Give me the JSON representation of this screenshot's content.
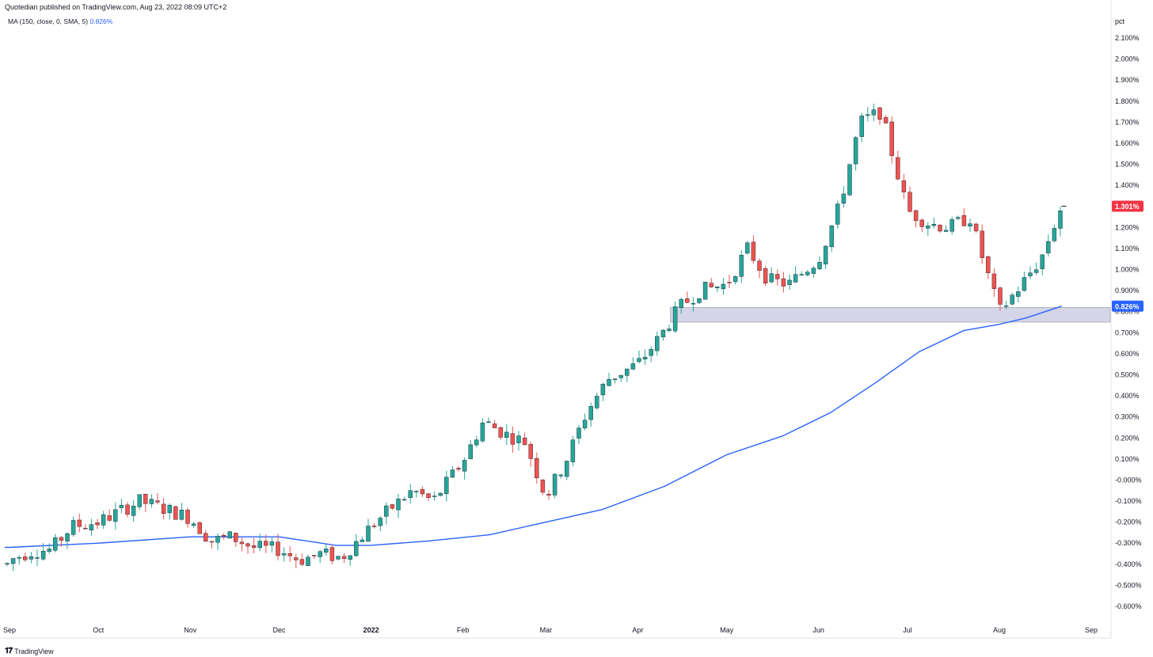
{
  "header": {
    "credit": "Quotedian published on TradingView.com, Aug 23, 2022 08:09 UTC+2",
    "indicator_label": "MA (150, close, 0, SMA, 5)",
    "indicator_value": "0.826%"
  },
  "footer": {
    "brand_icon": "tradingview-logo-icon",
    "brand": "TradingView"
  },
  "colors": {
    "up": "#26a69a",
    "down": "#ef5350",
    "ma_line": "#2962ff",
    "zone_fill": "#c9cbe0",
    "price_badge": "#f23645",
    "ma_badge": "#2962ff",
    "axis_text": "#131722"
  },
  "chart_data": {
    "type": "candlestick",
    "y_unit": "pct",
    "ylim": [
      -0.65,
      2.15
    ],
    "y_ticks": [
      "2.100%",
      "2.000%",
      "1.900%",
      "1.800%",
      "1.700%",
      "1.600%",
      "1.500%",
      "1.400%",
      "1.300%",
      "1.200%",
      "1.100%",
      "1.000%",
      "0.900%",
      "0.800%",
      "0.700%",
      "0.600%",
      "0.500%",
      "0.400%",
      "0.300%",
      "0.200%",
      "0.100%",
      "-0.000%",
      "-0.100%",
      "-0.200%",
      "-0.300%",
      "-0.400%",
      "-0.500%",
      "-0.600%"
    ],
    "x_labels": [
      "Sep",
      "Oct",
      "Nov",
      "Dec",
      "2022",
      "Feb",
      "Mar",
      "Apr",
      "May",
      "Jun",
      "Jul",
      "Aug",
      "Sep"
    ],
    "last_price_label": "1.301%",
    "ma_label": "0.826%",
    "support_zone": {
      "low": 0.75,
      "high": 0.82
    },
    "ma_series": [
      [
        "2021-09-01",
        -0.32
      ],
      [
        "2021-10-01",
        -0.3
      ],
      [
        "2021-11-01",
        -0.27
      ],
      [
        "2021-12-01",
        -0.27
      ],
      [
        "2021-12-20",
        -0.31
      ],
      [
        "2022-01-01",
        -0.31
      ],
      [
        "2022-01-20",
        -0.29
      ],
      [
        "2022-02-10",
        -0.26
      ],
      [
        "2022-03-01",
        -0.2
      ],
      [
        "2022-03-20",
        -0.14
      ],
      [
        "2022-04-10",
        -0.03
      ],
      [
        "2022-05-01",
        0.12
      ],
      [
        "2022-05-20",
        0.21
      ],
      [
        "2022-06-05",
        0.32
      ],
      [
        "2022-06-20",
        0.46
      ],
      [
        "2022-07-05",
        0.61
      ],
      [
        "2022-07-20",
        0.71
      ],
      [
        "2022-08-01",
        0.74
      ],
      [
        "2022-08-10",
        0.77
      ],
      [
        "2022-08-22",
        0.826
      ]
    ],
    "series": [
      {
        "name": "close",
        "values": [
          [
            "2021-09-01",
            -0.38
          ],
          [
            "2021-09-08",
            -0.34
          ],
          [
            "2021-09-15",
            -0.33
          ],
          [
            "2021-09-22",
            -0.22
          ],
          [
            "2021-10-01",
            -0.2
          ],
          [
            "2021-10-08",
            -0.15
          ],
          [
            "2021-10-15",
            -0.1
          ],
          [
            "2021-10-22",
            -0.13
          ],
          [
            "2021-11-01",
            -0.18
          ],
          [
            "2021-11-08",
            -0.29
          ],
          [
            "2021-11-15",
            -0.27
          ],
          [
            "2021-11-22",
            -0.32
          ],
          [
            "2021-12-01",
            -0.33
          ],
          [
            "2021-12-08",
            -0.38
          ],
          [
            "2021-12-15",
            -0.35
          ],
          [
            "2021-12-22",
            -0.37
          ],
          [
            "2022-01-01",
            -0.22
          ],
          [
            "2022-01-08",
            -0.13
          ],
          [
            "2022-01-15",
            -0.05
          ],
          [
            "2022-01-22",
            -0.1
          ],
          [
            "2022-02-01",
            0.09
          ],
          [
            "2022-02-08",
            0.28
          ],
          [
            "2022-02-15",
            0.22
          ],
          [
            "2022-02-22",
            0.18
          ],
          [
            "2022-03-01",
            -0.08
          ],
          [
            "2022-03-08",
            0.1
          ],
          [
            "2022-03-15",
            0.33
          ],
          [
            "2022-03-22",
            0.48
          ],
          [
            "2022-04-01",
            0.55
          ],
          [
            "2022-04-08",
            0.67
          ],
          [
            "2022-04-15",
            0.82
          ],
          [
            "2022-04-22",
            0.9
          ],
          [
            "2022-05-01",
            0.93
          ],
          [
            "2022-05-08",
            1.1
          ],
          [
            "2022-05-15",
            0.95
          ],
          [
            "2022-05-22",
            0.93
          ],
          [
            "2022-06-01",
            1.05
          ],
          [
            "2022-06-08",
            1.3
          ],
          [
            "2022-06-15",
            1.7
          ],
          [
            "2022-06-22",
            1.75
          ],
          [
            "2022-07-01",
            1.28
          ],
          [
            "2022-07-08",
            1.22
          ],
          [
            "2022-07-15",
            1.2
          ],
          [
            "2022-07-22",
            1.25
          ],
          [
            "2022-08-01",
            0.8
          ],
          [
            "2022-08-08",
            0.92
          ],
          [
            "2022-08-15",
            1.05
          ],
          [
            "2022-08-22",
            1.301
          ]
        ]
      }
    ]
  }
}
